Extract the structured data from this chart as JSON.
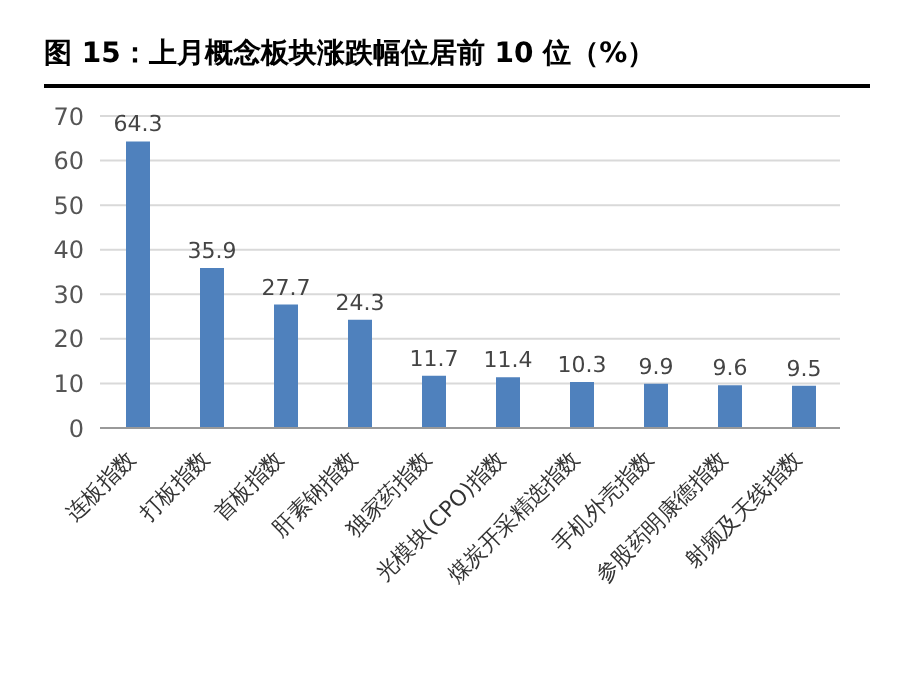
{
  "chart_data": {
    "type": "bar",
    "title": "图 15：上月概念板块涨跌幅位居前 10 位（%）",
    "categories": [
      "连板指数",
      "打板指数",
      "首板指数",
      "肝素钠指数",
      "独家药指数",
      "光模块(CPO)指数",
      "煤炭开采精选指数",
      "手机外壳指数",
      "参股药明康德指数",
      "射频及天线指数"
    ],
    "values": [
      64.3,
      35.9,
      27.7,
      24.3,
      11.7,
      11.4,
      10.3,
      9.9,
      9.6,
      9.5
    ],
    "color": "#4f81bd",
    "ylim": [
      0,
      70
    ],
    "yticks": [
      0,
      10,
      20,
      30,
      40,
      50,
      60,
      70
    ],
    "grid": "y",
    "data_labels": true,
    "legend": false
  }
}
